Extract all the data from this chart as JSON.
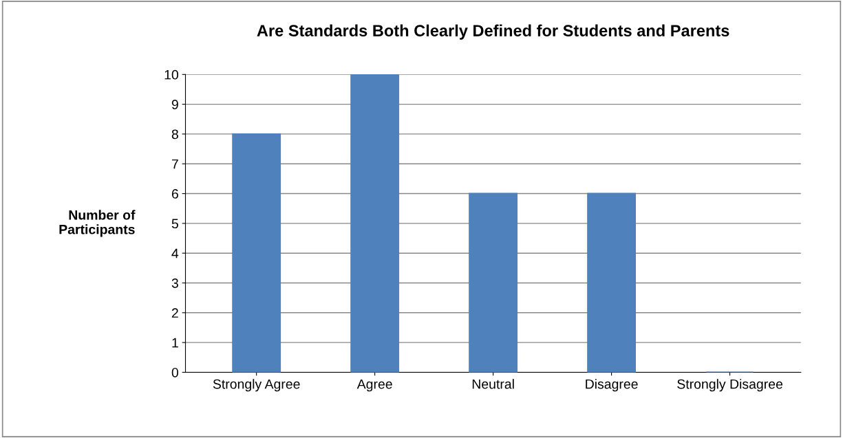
{
  "chart_data": {
    "type": "bar",
    "title": "Are Standards Both Clearly Defined for Students and Parents",
    "ylabel": "Number of\nParticipants",
    "categories": [
      "Strongly Agree",
      "Agree",
      "Neutral",
      "Disagree",
      "Strongly Disagree"
    ],
    "values": [
      8,
      10,
      6,
      6,
      0
    ],
    "color": "#4f81bd",
    "ylim": [
      0,
      10
    ],
    "yticks": [
      0,
      1,
      2,
      3,
      4,
      5,
      6,
      7,
      8,
      9,
      10
    ],
    "grid": "y",
    "legend": false
  }
}
